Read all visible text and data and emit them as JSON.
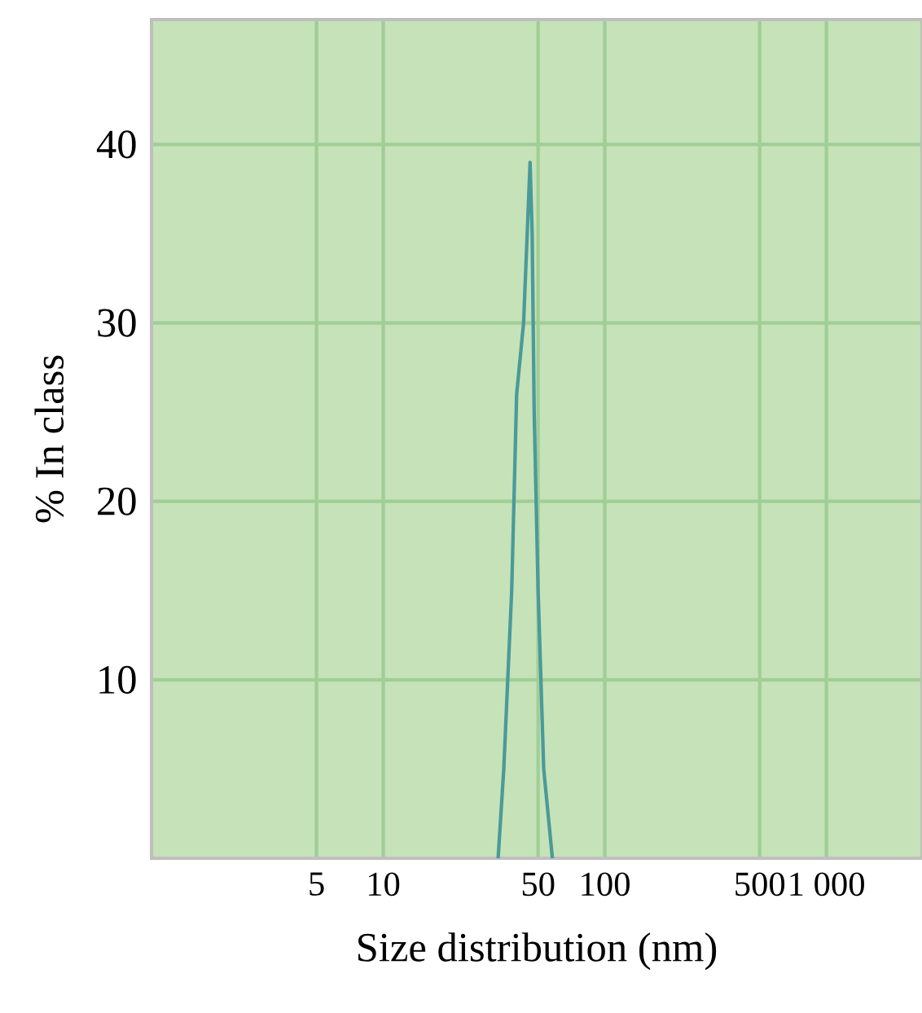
{
  "chart_data": {
    "type": "line",
    "xlabel": "Size distribution (nm)",
    "ylabel": "% In class",
    "x": [
      33,
      35,
      38,
      40,
      43,
      46,
      47,
      48,
      50,
      53,
      58
    ],
    "series": [
      {
        "color": "#4a9a9a",
        "values": [
          0,
          5,
          15,
          26,
          30,
          39,
          35,
          25,
          15,
          5,
          0
        ]
      }
    ],
    "log": "x",
    "xlim": [
      0.9,
      2700
    ],
    "ylim": [
      0,
      47
    ],
    "xticks": [
      5,
      10,
      50,
      100,
      500,
      {
        "value": 1000,
        "label": "1 000"
      }
    ],
    "yticks": [
      10,
      20,
      30,
      40
    ],
    "grid": true,
    "marker": "none",
    "line_style": "solid"
  }
}
